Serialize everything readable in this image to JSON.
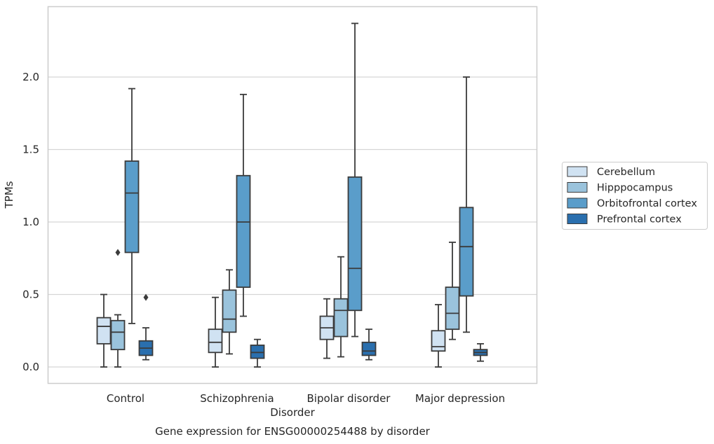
{
  "chart_data": {
    "type": "box",
    "title": "",
    "caption": "Gene expression for ENSG00000254488 by disorder",
    "xlabel": "Disorder",
    "ylabel": "TPMs",
    "ylim": [
      -0.11,
      2.48
    ],
    "yticks": [
      0.0,
      0.5,
      1.0,
      1.5,
      2.0
    ],
    "ytick_labels": [
      "0.0",
      "0.5",
      "1.0",
      "1.5",
      "2.0"
    ],
    "grid": "horizontal",
    "legend_position": "right",
    "categories": [
      "Control",
      "Schizophrenia",
      "Bipolar disorder",
      "Major depression"
    ],
    "series": [
      {
        "name": "Cerebellum",
        "color": "#d0e2f2",
        "boxes": [
          {
            "whislo": 0.0,
            "q1": 0.16,
            "med": 0.28,
            "q3": 0.34,
            "whishi": 0.5,
            "fliers": []
          },
          {
            "whislo": 0.0,
            "q1": 0.1,
            "med": 0.17,
            "q3": 0.26,
            "whishi": 0.48,
            "fliers": []
          },
          {
            "whislo": 0.06,
            "q1": 0.19,
            "med": 0.27,
            "q3": 0.35,
            "whishi": 0.47,
            "fliers": []
          },
          {
            "whislo": 0.0,
            "q1": 0.11,
            "med": 0.14,
            "q3": 0.25,
            "whishi": 0.43,
            "fliers": []
          }
        ]
      },
      {
        "name": "Hipppocampus",
        "color": "#9ac3dc",
        "boxes": [
          {
            "whislo": 0.0,
            "q1": 0.12,
            "med": 0.24,
            "q3": 0.32,
            "whishi": 0.36,
            "fliers": [
              0.79
            ]
          },
          {
            "whislo": 0.09,
            "q1": 0.24,
            "med": 0.33,
            "q3": 0.53,
            "whishi": 0.67,
            "fliers": []
          },
          {
            "whislo": 0.07,
            "q1": 0.21,
            "med": 0.39,
            "q3": 0.47,
            "whishi": 0.76,
            "fliers": []
          },
          {
            "whislo": 0.19,
            "q1": 0.26,
            "med": 0.37,
            "q3": 0.55,
            "whishi": 0.86,
            "fliers": []
          }
        ]
      },
      {
        "name": "Orbitofrontal cortex",
        "color": "#5a9dca",
        "boxes": [
          {
            "whislo": 0.3,
            "q1": 0.79,
            "med": 1.2,
            "q3": 1.42,
            "whishi": 1.92,
            "fliers": []
          },
          {
            "whislo": 0.35,
            "q1": 0.55,
            "med": 1.0,
            "q3": 1.32,
            "whishi": 1.88,
            "fliers": []
          },
          {
            "whislo": 0.21,
            "q1": 0.39,
            "med": 0.68,
            "q3": 1.31,
            "whishi": 2.37,
            "fliers": []
          },
          {
            "whislo": 0.24,
            "q1": 0.49,
            "med": 0.83,
            "q3": 1.1,
            "whishi": 2.0,
            "fliers": []
          }
        ]
      },
      {
        "name": "Prefrontal cortex",
        "color": "#2a6fae",
        "boxes": [
          {
            "whislo": 0.05,
            "q1": 0.08,
            "med": 0.13,
            "q3": 0.18,
            "whishi": 0.27,
            "fliers": [
              0.48
            ]
          },
          {
            "whislo": 0.0,
            "q1": 0.06,
            "med": 0.1,
            "q3": 0.15,
            "whishi": 0.19,
            "fliers": []
          },
          {
            "whislo": 0.05,
            "q1": 0.08,
            "med": 0.11,
            "q3": 0.17,
            "whishi": 0.26,
            "fliers": []
          },
          {
            "whislo": 0.04,
            "q1": 0.08,
            "med": 0.1,
            "q3": 0.12,
            "whishi": 0.16,
            "fliers": []
          }
        ]
      }
    ]
  },
  "colors": {
    "grid": "#d5d5d5",
    "frame": "#cccccc",
    "line": "#3b3b3b",
    "text": "#262626"
  }
}
